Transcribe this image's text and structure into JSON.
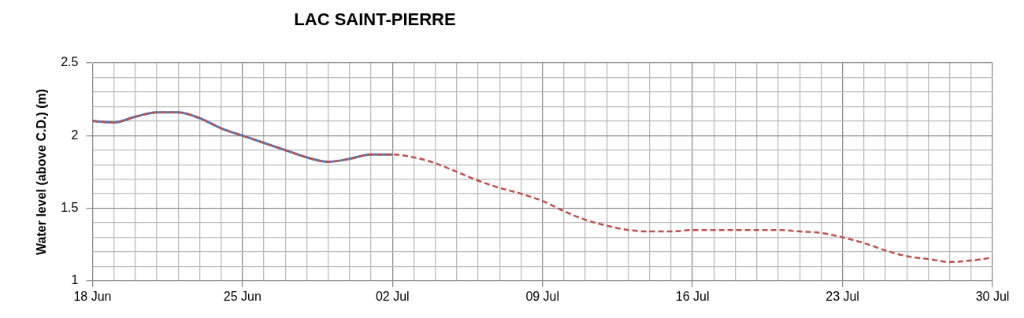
{
  "chart_data": {
    "type": "line",
    "title": "LAC SAINT-PIERRE",
    "ylabel": "Water level (above C.D.) (m)",
    "x": [
      "--06-18",
      "--06-19",
      "--06-20",
      "--06-21",
      "--06-22",
      "--06-23",
      "--06-24",
      "--06-25",
      "--06-26",
      "--06-27",
      "--06-28",
      "--06-29",
      "--06-30",
      "--07-01",
      "--07-02",
      "--07-03",
      "--07-04",
      "--07-05",
      "--07-06",
      "--07-07",
      "--07-08",
      "--07-09",
      "--07-10",
      "--07-11",
      "--07-12",
      "--07-13",
      "--07-14",
      "--07-15",
      "--07-16",
      "--07-17",
      "--07-18",
      "--07-19",
      "--07-20",
      "--07-21",
      "--07-22",
      "--07-23",
      "--07-24",
      "--07-25",
      "--07-26",
      "--07-27",
      "--07-28",
      "--07-29",
      "--07-30"
    ],
    "series": [
      {
        "color": "#4a7ebb",
        "line_style": "solid",
        "x": [
          "--06-18",
          "--06-19",
          "--06-20",
          "--06-21",
          "--06-22",
          "--06-23",
          "--06-24",
          "--06-25",
          "--06-26",
          "--06-27",
          "--06-28",
          "--06-29",
          "--06-30",
          "--07-01",
          "--07-02"
        ],
        "values": [
          2.1,
          2.09,
          2.13,
          2.16,
          2.16,
          2.12,
          2.05,
          2.0,
          1.95,
          1.9,
          1.85,
          1.82,
          1.84,
          1.87,
          1.87
        ]
      },
      {
        "color": "#c0504d",
        "line_style": "dashed",
        "values": [
          2.1,
          2.09,
          2.13,
          2.16,
          2.16,
          2.12,
          2.05,
          2.0,
          1.95,
          1.9,
          1.85,
          1.82,
          1.84,
          1.87,
          1.87,
          1.85,
          1.81,
          1.75,
          1.69,
          1.64,
          1.6,
          1.55,
          1.48,
          1.42,
          1.38,
          1.35,
          1.34,
          1.34,
          1.35,
          1.35,
          1.35,
          1.35,
          1.35,
          1.34,
          1.33,
          1.3,
          1.26,
          1.21,
          1.17,
          1.15,
          1.13,
          1.14,
          1.16
        ]
      }
    ],
    "xlim": [
      "--06-18",
      "--07-30"
    ],
    "xticks": [
      {
        "value": "--06-18",
        "label": "18 Jun"
      },
      {
        "value": "--06-19",
        "label": null
      },
      {
        "value": "--06-20",
        "label": null
      },
      {
        "value": "--06-21",
        "label": null
      },
      {
        "value": "--06-22",
        "label": null
      },
      {
        "value": "--06-23",
        "label": null
      },
      {
        "value": "--06-24",
        "label": null
      },
      {
        "value": "--06-25",
        "label": "25 Jun"
      },
      {
        "value": "--06-26",
        "label": null
      },
      {
        "value": "--06-27",
        "label": null
      },
      {
        "value": "--06-28",
        "label": null
      },
      {
        "value": "--06-29",
        "label": null
      },
      {
        "value": "--06-30",
        "label": null
      },
      {
        "value": "--07-01",
        "label": null
      },
      {
        "value": "--07-02",
        "label": "02 Jul"
      },
      {
        "value": "--07-03",
        "label": null
      },
      {
        "value": "--07-04",
        "label": null
      },
      {
        "value": "--07-05",
        "label": null
      },
      {
        "value": "--07-06",
        "label": null
      },
      {
        "value": "--07-07",
        "label": null
      },
      {
        "value": "--07-08",
        "label": null
      },
      {
        "value": "--07-09",
        "label": "09 Jul"
      },
      {
        "value": "--07-10",
        "label": null
      },
      {
        "value": "--07-11",
        "label": null
      },
      {
        "value": "--07-12",
        "label": null
      },
      {
        "value": "--07-13",
        "label": null
      },
      {
        "value": "--07-14",
        "label": null
      },
      {
        "value": "--07-15",
        "label": null
      },
      {
        "value": "--07-16",
        "label": "16 Jul"
      },
      {
        "value": "--07-17",
        "label": null
      },
      {
        "value": "--07-18",
        "label": null
      },
      {
        "value": "--07-19",
        "label": null
      },
      {
        "value": "--07-20",
        "label": null
      },
      {
        "value": "--07-21",
        "label": null
      },
      {
        "value": "--07-22",
        "label": null
      },
      {
        "value": "--07-23",
        "label": "23 Jul"
      },
      {
        "value": "--07-24",
        "label": null
      },
      {
        "value": "--07-25",
        "label": null
      },
      {
        "value": "--07-26",
        "label": null
      },
      {
        "value": "--07-27",
        "label": null
      },
      {
        "value": "--07-28",
        "label": null
      },
      {
        "value": "--07-29",
        "label": null
      },
      {
        "value": "--07-30",
        "label": "30 Jul"
      }
    ],
    "ylim": [
      1,
      2.5
    ],
    "yticks": [
      1,
      {
        "value": 1.1,
        "label": null
      },
      {
        "value": 1.2,
        "label": null
      },
      {
        "value": 1.3,
        "label": null
      },
      {
        "value": 1.4,
        "label": null
      },
      1.5,
      {
        "value": 1.6,
        "label": null
      },
      {
        "value": 1.7,
        "label": null
      },
      {
        "value": 1.8,
        "label": null
      },
      {
        "value": 1.9,
        "label": null
      },
      2,
      {
        "value": 2.1,
        "label": null
      },
      {
        "value": 2.2,
        "label": null
      },
      {
        "value": 2.3,
        "label": null
      },
      {
        "value": 2.4,
        "label": null
      },
      2.5
    ],
    "grid": true,
    "legend": false,
    "marker": "none"
  }
}
